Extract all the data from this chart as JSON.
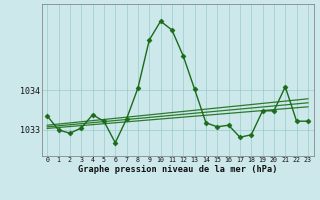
{
  "hours": [
    0,
    1,
    2,
    3,
    4,
    5,
    6,
    7,
    8,
    9,
    10,
    11,
    12,
    13,
    14,
    15,
    16,
    17,
    18,
    19,
    20,
    21,
    22,
    23
  ],
  "pressure_main": [
    1033.35,
    1033.0,
    1032.92,
    1033.05,
    1033.38,
    1033.22,
    1032.68,
    1033.28,
    1034.05,
    1035.25,
    1035.72,
    1035.5,
    1034.85,
    1034.02,
    1033.18,
    1033.08,
    1033.12,
    1032.82,
    1032.88,
    1033.48,
    1033.48,
    1034.08,
    1033.22,
    1033.22
  ],
  "trend_lines": [
    {
      "x0": 0,
      "y0": 1033.04,
      "x1": 23,
      "y1": 1033.58
    },
    {
      "x0": 0,
      "y0": 1033.08,
      "x1": 23,
      "y1": 1033.68
    },
    {
      "x0": 0,
      "y0": 1033.12,
      "x1": 23,
      "y1": 1033.78
    }
  ],
  "bg_color": "#cce8ea",
  "grid_color": "#99cccc",
  "line_color": "#1a6b1a",
  "trend_color": "#2d7a2d",
  "ylim_min": 1032.35,
  "ylim_max": 1036.15,
  "yticks": [
    1033,
    1034
  ],
  "xlim_min": -0.5,
  "xlim_max": 23.5,
  "xlabel": "Graphe pression niveau de la mer (hPa)",
  "marker": "D",
  "markersize": 2.5,
  "linewidth": 1.0,
  "trend_linewidth": 0.9
}
